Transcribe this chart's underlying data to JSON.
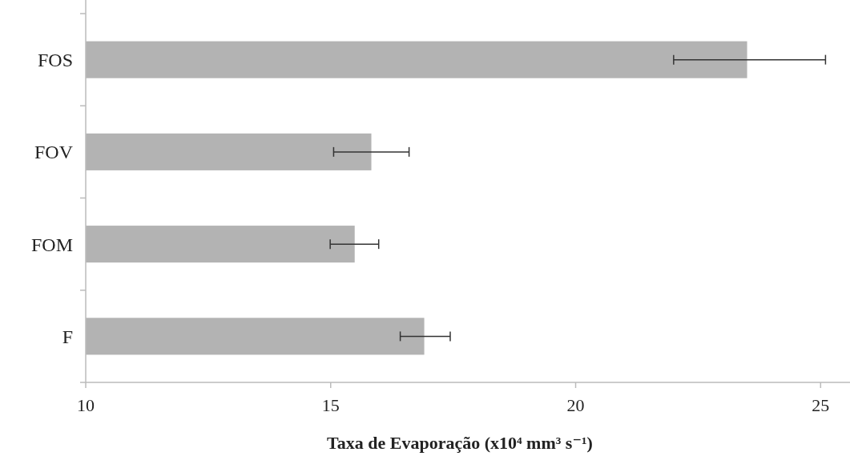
{
  "chart_data": {
    "type": "bar",
    "orientation": "horizontal",
    "xlabel": "Taxa de Evaporação (x10⁴ mm³ s⁻¹)",
    "categories": [
      "FOS",
      "FOV",
      "FOM",
      "F"
    ],
    "values": [
      23.5,
      15.83,
      15.49,
      16.91
    ],
    "errors": [
      [
        22.0,
        25.1
      ],
      [
        15.06,
        16.6
      ],
      [
        14.99,
        15.98
      ],
      [
        16.42,
        17.44
      ]
    ],
    "color": "#b3b3b3",
    "xlim": [
      10,
      25.6
    ],
    "xticks": [
      10,
      15,
      20,
      25
    ],
    "grid": false
  }
}
